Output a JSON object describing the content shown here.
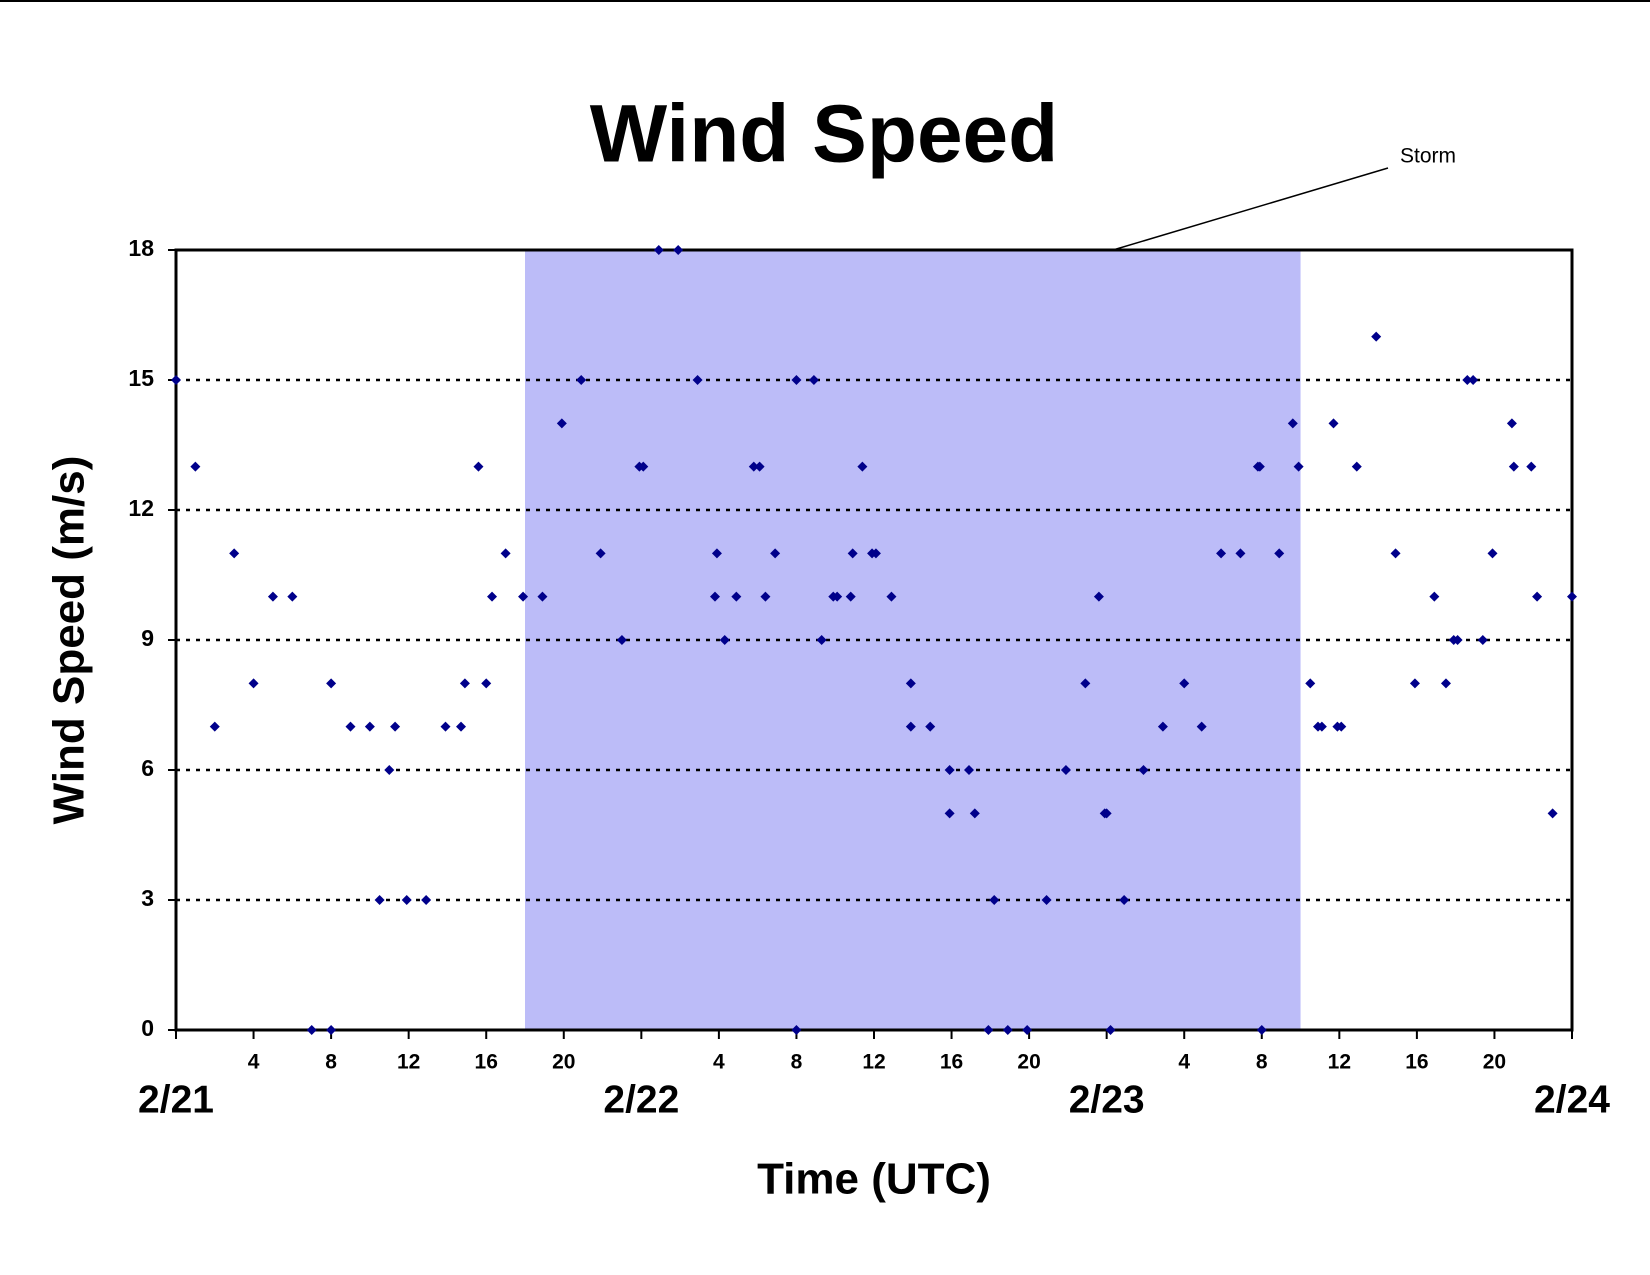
{
  "chart_data": {
    "type": "scatter",
    "title": "Wind Speed",
    "xlabel": "Time (UTC)",
    "ylabel": "Wind Speed (m/s)",
    "xlim": [
      0,
      72
    ],
    "ylim": [
      0,
      18
    ],
    "yticks": [
      0,
      3,
      6,
      9,
      12,
      15,
      18
    ],
    "xticks": [
      4,
      8,
      12,
      16,
      20,
      {
        "value": 28,
        "label": "4"
      },
      {
        "value": 32,
        "label": "8"
      },
      {
        "value": 36,
        "label": "12"
      },
      {
        "value": 40,
        "label": "16"
      },
      {
        "value": 44,
        "label": "20"
      },
      {
        "value": 52,
        "label": "4"
      },
      {
        "value": 56,
        "label": "8"
      },
      {
        "value": 60,
        "label": "12"
      },
      {
        "value": 64,
        "label": "16"
      },
      {
        "value": 68,
        "label": "20"
      }
    ],
    "date_ticks": [
      {
        "value": 0,
        "label": "2/21"
      },
      {
        "value": 24,
        "label": "2/22"
      },
      {
        "value": 48,
        "label": "2/23"
      },
      {
        "value": 72,
        "label": "2/24"
      }
    ],
    "grid": true,
    "grid_style": "dotted",
    "storm": {
      "label": "Storm",
      "x_range": [
        18,
        58
      ],
      "color": "#bcbcf8"
    },
    "series": [
      {
        "color": "#00008b",
        "x": [
          0,
          1,
          2,
          3,
          4,
          5,
          6,
          7,
          8,
          8,
          9,
          10,
          10.5,
          11,
          11.3,
          11.9,
          12.9,
          13.9,
          14.7,
          14.9,
          15.6,
          16.0,
          16.3,
          17.0,
          17.9,
          18.9,
          19.9,
          20.9,
          21.9,
          23.0,
          23.9,
          24.1,
          24.9,
          25.9,
          26.9,
          27.9,
          27.8,
          28.3,
          28.9,
          29.8,
          30.1,
          30.4,
          30.9,
          32.0,
          32.0,
          32.9,
          33.3,
          33.9,
          34.1,
          34.8,
          34.9,
          35.4,
          35.9,
          36.1,
          36.9,
          37.9,
          37.9,
          38.9,
          39.9,
          39.9,
          40.9,
          41.2,
          41.9,
          42.2,
          42.9,
          43.9,
          44.9,
          45.9,
          46.9,
          47.6,
          47.9,
          48.0,
          48.2,
          48.9,
          49.9,
          50.9,
          52.0,
          52.9,
          53.9,
          54.9,
          55.8,
          55.9,
          56.0,
          56.9,
          57.6,
          57.9,
          58.5,
          58.9,
          59.1,
          59.7,
          59.9,
          60.1,
          60.9,
          61.9,
          62.9,
          63.9,
          64.9,
          65.5,
          65.9,
          66.1,
          66.6,
          66.9,
          67.4,
          67.9,
          68.9,
          69.0,
          69.9,
          70.2,
          71.0,
          72.0
        ],
        "values": [
          15,
          13,
          7,
          11,
          8,
          10,
          10,
          0,
          8,
          0,
          7,
          7,
          3,
          6,
          7,
          3,
          3,
          7,
          7,
          8,
          13,
          8,
          10,
          11,
          10,
          10,
          14,
          15,
          11,
          9,
          13,
          13,
          18,
          18,
          15,
          11,
          10,
          9,
          10,
          13,
          13,
          10,
          11,
          15,
          0,
          15,
          9,
          10,
          10,
          10,
          11,
          13,
          11,
          11,
          10,
          8,
          7,
          7,
          6,
          5,
          6,
          5,
          0,
          3,
          0,
          0,
          3,
          6,
          8,
          10,
          5,
          5,
          0,
          3,
          6,
          7,
          8,
          7,
          11,
          11,
          13,
          13,
          0,
          11,
          14,
          13,
          8,
          7,
          7,
          14,
          7,
          7,
          13,
          16,
          11,
          8,
          10,
          8,
          9,
          9,
          15,
          15,
          9,
          11,
          14,
          13,
          13,
          10,
          5,
          10
        ]
      }
    ]
  }
}
